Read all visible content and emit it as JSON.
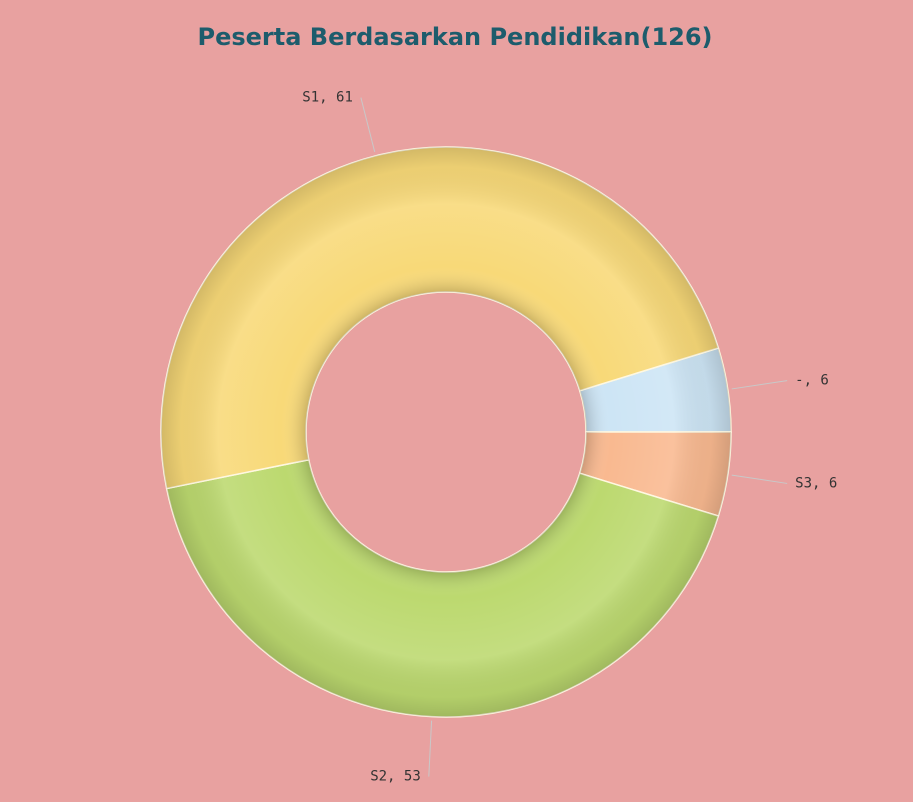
{
  "chart_data": {
    "type": "donut",
    "title": "Peserta Berdasarkan Pendidikan(126)",
    "values": [
      6,
      6,
      53,
      61
    ],
    "value_labels": [
      "-, 6",
      "S3, 6",
      "S2, 53",
      "S1, 61"
    ],
    "colors": [
      "#cde5f5",
      "#f9b990",
      "#bcd96f",
      "#f8d978"
    ]
  }
}
